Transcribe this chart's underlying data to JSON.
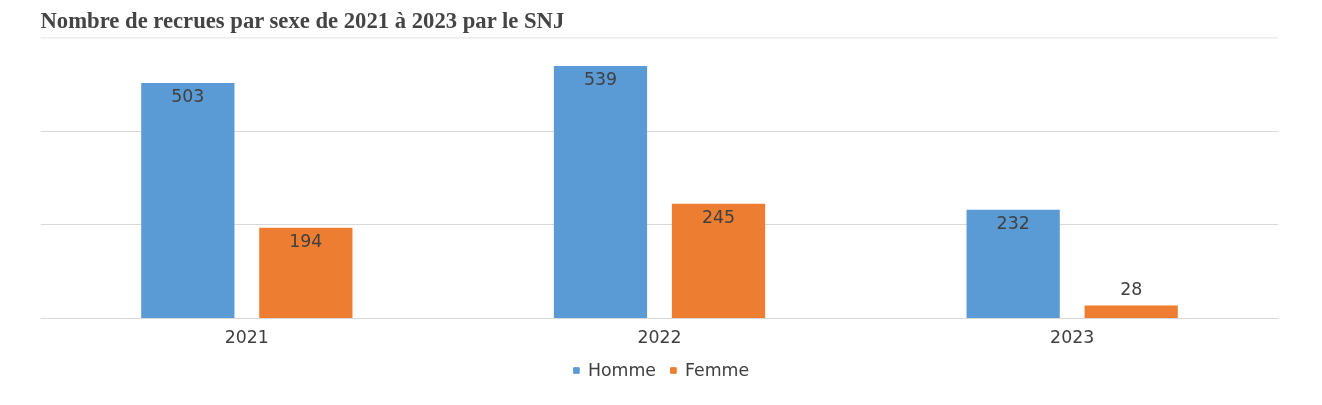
{
  "chart_data": {
    "type": "bar",
    "title": "Nombre de recrues par sexe de 2021 à 2023 par le SNJ",
    "categories": [
      "2021",
      "2022",
      "2023"
    ],
    "series": [
      {
        "name": "Homme",
        "color": "#5b9bd5",
        "values": [
          503,
          539,
          232
        ]
      },
      {
        "name": "Femme",
        "color": "#ed7d31",
        "values": [
          194,
          245,
          28
        ]
      }
    ],
    "ylim": [
      0,
      600
    ],
    "yticks": [
      {
        "value": 0,
        "label": null
      },
      {
        "value": 200,
        "label": null
      },
      {
        "value": 400,
        "label": null
      },
      {
        "value": 600,
        "label": null
      }
    ],
    "tick_labels": "x",
    "grid": "y",
    "legend": "bottom",
    "data_labels": true
  }
}
